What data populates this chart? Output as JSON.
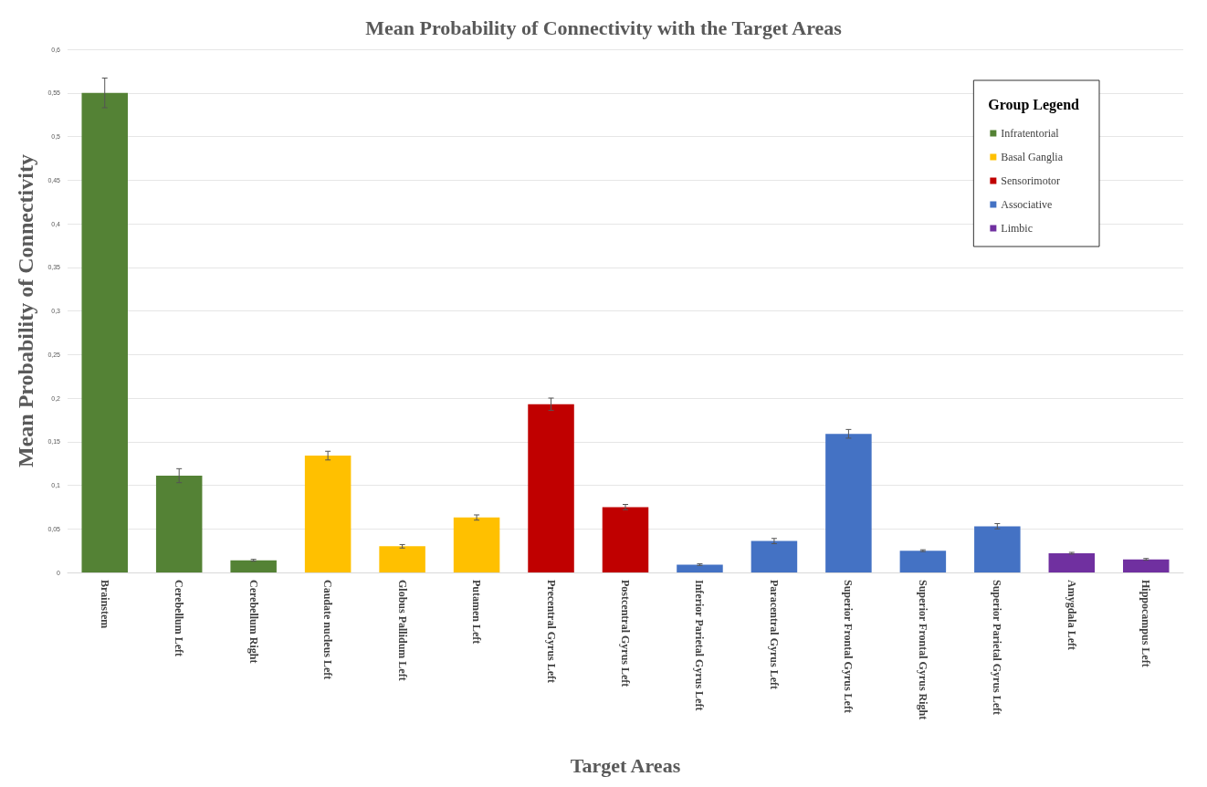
{
  "chart_data": {
    "type": "bar",
    "title": "Mean Probability of Connectivity with the Target Areas",
    "xlabel": "Target Areas",
    "ylabel": "Mean Probability of Connectivity",
    "legend_title": "Group Legend",
    "legend": "top right",
    "grid": "y",
    "categories": [
      "Brainstem",
      "Cerebellum Left",
      "Cerebellum Right",
      "Caudate nucleus Left",
      "Globus Pallidum Left",
      "Putamen Left",
      "Precentral Gyrus Left",
      "Postcentral Gyrus Left",
      "Inferior Parietal Gyrus Left",
      "Paracentral Gyrus Left",
      "Superior Frontal Gyrus Left",
      "Superior Frontal Gyrus Right",
      "Superior Parietal Gyrus Left",
      "Amygdala Left",
      "Hippocampus Left"
    ],
    "ylim": [
      0,
      0.6
    ],
    "yticks": [
      0,
      {
        "value": 0.05,
        "label": "0,05"
      },
      {
        "value": 0.1,
        "label": "0,1"
      },
      {
        "value": 0.15,
        "label": "0,15"
      },
      {
        "value": 0.2,
        "label": "0,2"
      },
      {
        "value": 0.25,
        "label": "0,25"
      },
      {
        "value": 0.3,
        "label": "0,3"
      },
      {
        "value": 0.35,
        "label": "0,35"
      },
      {
        "value": 0.4,
        "label": "0,4"
      },
      {
        "value": 0.45,
        "label": "0,45"
      },
      {
        "value": 0.5,
        "label": "0,5"
      },
      {
        "value": 0.55,
        "label": "0,55"
      },
      {
        "value": 0.6,
        "label": "0,6"
      }
    ],
    "series": [
      {
        "name": "Infratentorial",
        "color": "#548235",
        "values": [
          0.55,
          0.111,
          0.014,
          null,
          null,
          null,
          null,
          null,
          null,
          null,
          null,
          null,
          null,
          null,
          null
        ],
        "errors": [
          0.017,
          0.008,
          0.001,
          null,
          null,
          null,
          null,
          null,
          null,
          null,
          null,
          null,
          null,
          null,
          null
        ]
      },
      {
        "name": "Basal Ganglia",
        "color": "#ffc000",
        "values": [
          null,
          null,
          null,
          0.134,
          0.03,
          0.063,
          null,
          null,
          null,
          null,
          null,
          null,
          null,
          null,
          null
        ],
        "errors": [
          null,
          null,
          null,
          0.005,
          0.002,
          0.003,
          null,
          null,
          null,
          null,
          null,
          null,
          null,
          null,
          null
        ]
      },
      {
        "name": "Sensorimotor",
        "color": "#c00000",
        "values": [
          null,
          null,
          null,
          null,
          null,
          null,
          0.193,
          0.075,
          null,
          null,
          null,
          null,
          null,
          null,
          null
        ],
        "errors": [
          null,
          null,
          null,
          null,
          null,
          null,
          0.007,
          0.003,
          null,
          null,
          null,
          null,
          null,
          null,
          null
        ]
      },
      {
        "name": "Associative",
        "color": "#4472c4",
        "values": [
          null,
          null,
          null,
          null,
          null,
          null,
          null,
          null,
          0.009,
          0.036,
          0.159,
          0.025,
          0.053,
          null,
          null
        ],
        "errors": [
          null,
          null,
          null,
          null,
          null,
          null,
          null,
          null,
          0.001,
          0.003,
          0.005,
          0.001,
          0.003,
          null,
          null
        ]
      },
      {
        "name": "Limbic",
        "color": "#7030a0",
        "values": [
          null,
          null,
          null,
          null,
          null,
          null,
          null,
          null,
          null,
          null,
          null,
          null,
          null,
          0.022,
          0.015
        ],
        "errors": [
          null,
          null,
          null,
          null,
          null,
          null,
          null,
          null,
          null,
          null,
          null,
          null,
          null,
          0.001,
          0.001
        ]
      }
    ]
  }
}
